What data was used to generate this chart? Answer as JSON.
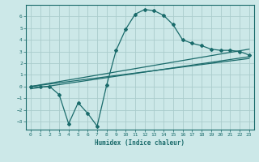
{
  "xlabel": "Humidex (Indice chaleur)",
  "ylabel": "",
  "background_color": "#cce8e8",
  "grid_color": "#aacccc",
  "line_color": "#1a6b6b",
  "xlim": [
    -0.5,
    23.5
  ],
  "ylim": [
    -3.7,
    7.0
  ],
  "xticks": [
    0,
    1,
    2,
    3,
    4,
    5,
    6,
    7,
    8,
    9,
    10,
    11,
    12,
    13,
    14,
    15,
    16,
    17,
    18,
    19,
    20,
    21,
    22,
    23
  ],
  "yticks": [
    -3,
    -2,
    -1,
    0,
    1,
    2,
    3,
    4,
    5,
    6
  ],
  "curve1_x": [
    0,
    1,
    2,
    3,
    4,
    5,
    6,
    7,
    8,
    9,
    10,
    11,
    12,
    13,
    14,
    15,
    16,
    17,
    18,
    19,
    20,
    21,
    22,
    23
  ],
  "curve1_y": [
    0.0,
    -0.05,
    0.0,
    -0.7,
    -3.2,
    -1.4,
    -2.3,
    -3.4,
    0.1,
    3.1,
    4.9,
    6.2,
    6.6,
    6.5,
    6.1,
    5.3,
    4.0,
    3.7,
    3.5,
    3.2,
    3.1,
    3.1,
    3.0,
    2.7
  ],
  "curve2_x": [
    0,
    23
  ],
  "curve2_y": [
    0.0,
    3.2
  ],
  "curve3_x": [
    0,
    23
  ],
  "curve3_y": [
    0.0,
    2.4
  ],
  "curve4_x": [
    0,
    23
  ],
  "curve4_y": [
    -0.2,
    2.55
  ]
}
